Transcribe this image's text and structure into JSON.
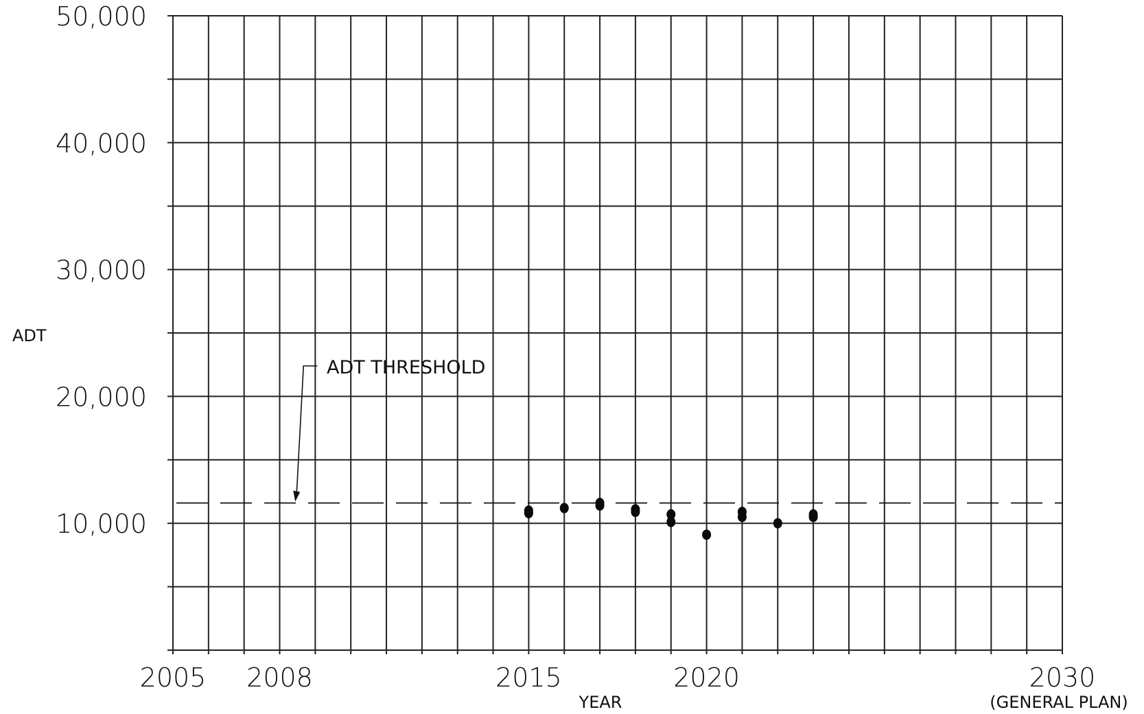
{
  "chart_data": {
    "type": "scatter",
    "xlabel": "YEAR",
    "ylabel": "ADT",
    "xlim": [
      2005,
      2030
    ],
    "ylim": [
      0,
      50000
    ],
    "x_ticks": [
      {
        "value": 2005,
        "label": "2005"
      },
      {
        "value": 2008,
        "label": "2008"
      },
      {
        "value": 2015,
        "label": "2015"
      },
      {
        "value": 2020,
        "label": "2020"
      },
      {
        "value": 2030,
        "label": "2030"
      }
    ],
    "x_tick_sublabel": {
      "value": 2030,
      "label": "(GENERAL PLAN)"
    },
    "y_ticks": [
      {
        "value": 10000,
        "label": "10,000"
      },
      {
        "value": 20000,
        "label": "20,000"
      },
      {
        "value": 30000,
        "label": "30,000"
      },
      {
        "value": 40000,
        "label": "40,000"
      },
      {
        "value": 50000,
        "label": "50,000"
      }
    ],
    "grid": {
      "x_step": 1,
      "y_step": 5000,
      "visible": true
    },
    "threshold": {
      "value": 11600,
      "label": "ADT THRESHOLD",
      "style": "dashed",
      "arrow_at_year": 2008.4
    },
    "points": [
      {
        "x": 2015,
        "y": 11000
      },
      {
        "x": 2015,
        "y": 10800
      },
      {
        "x": 2016,
        "y": 11200
      },
      {
        "x": 2017,
        "y": 11600
      },
      {
        "x": 2017,
        "y": 11400
      },
      {
        "x": 2018,
        "y": 11100
      },
      {
        "x": 2018,
        "y": 10900
      },
      {
        "x": 2019,
        "y": 10700
      },
      {
        "x": 2019,
        "y": 10100
      },
      {
        "x": 2020,
        "y": 9100
      },
      {
        "x": 2021,
        "y": 10900
      },
      {
        "x": 2021,
        "y": 10500
      },
      {
        "x": 2022,
        "y": 10000
      },
      {
        "x": 2023,
        "y": 10700
      },
      {
        "x": 2023,
        "y": 10500
      }
    ]
  }
}
